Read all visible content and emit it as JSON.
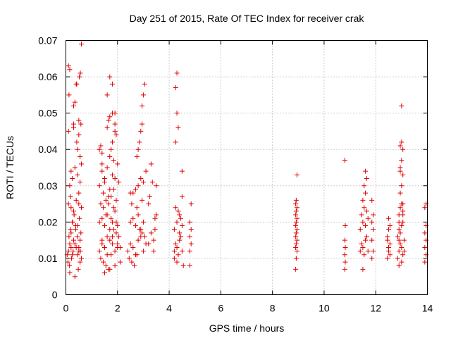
{
  "chart_data": {
    "type": "scatter",
    "title": "Day 251 of 2015, Rate Of TEC Index for receiver crak",
    "xlabel": "GPS time / hours",
    "ylabel": "ROTI / TECUs",
    "xlim": [
      0,
      14
    ],
    "ylim": [
      0,
      0.07
    ],
    "xticks": [
      "0",
      "2",
      "4",
      "6",
      "8",
      "10",
      "12",
      "14"
    ],
    "yticks": [
      "0",
      "0.01",
      "0.02",
      "0.03",
      "0.04",
      "0.05",
      "0.06",
      "0.07"
    ],
    "xtick_values": [
      0,
      2,
      4,
      6,
      8,
      10,
      12,
      14
    ],
    "ytick_values": [
      0,
      0.01,
      0.02,
      0.03,
      0.04,
      0.05,
      0.06,
      0.07
    ],
    "grid": true,
    "marker": "+",
    "color": "#e00000",
    "series": [
      {
        "x": [
          0.1,
          0.15,
          0.2,
          0.25,
          0.3,
          0.12,
          0.18,
          0.22,
          0.28,
          0.35,
          0.4,
          0.45,
          0.5,
          0.55,
          0.6,
          0.08,
          0.14,
          0.2,
          0.26,
          0.32,
          0.38,
          0.44,
          0.5,
          0.56,
          0.1,
          0.2,
          0.3,
          0.4,
          0.5,
          0.6,
          0.15,
          0.25,
          0.35,
          0.45,
          0.55,
          0.1,
          0.3,
          0.5,
          0.58,
          0.12,
          0.42,
          0.52,
          0.56,
          0.1,
          0.15,
          0.3,
          0.35,
          0.4,
          0.45,
          0.55,
          0.6,
          0.2,
          0.5,
          0.05,
          0.15,
          0.35,
          0.48,
          0.25,
          0.55,
          0.38,
          0.45,
          0.52,
          0.58,
          0.18,
          0.42,
          0.5,
          0.3,
          0.6
        ],
        "y": [
          0.012,
          0.014,
          0.013,
          0.011,
          0.015,
          0.016,
          0.018,
          0.01,
          0.012,
          0.014,
          0.013,
          0.011,
          0.012,
          0.015,
          0.01,
          0.009,
          0.008,
          0.017,
          0.02,
          0.022,
          0.019,
          0.016,
          0.013,
          0.012,
          0.025,
          0.024,
          0.023,
          0.026,
          0.025,
          0.024,
          0.03,
          0.032,
          0.035,
          0.033,
          0.031,
          0.045,
          0.046,
          0.048,
          0.047,
          0.055,
          0.058,
          0.06,
          0.061,
          0.063,
          0.062,
          0.052,
          0.053,
          0.058,
          0.04,
          0.038,
          0.036,
          0.034,
          0.028,
          0.011,
          0.006,
          0.005,
          0.007,
          0.02,
          0.009,
          0.018,
          0.019,
          0.021,
          0.017,
          0.027,
          0.042,
          0.044,
          0.047,
          0.069
        ]
      },
      {
        "x": [
          1.3,
          1.4,
          1.5,
          1.6,
          1.7,
          1.8,
          1.9,
          2.0,
          2.1,
          1.35,
          1.45,
          1.55,
          1.65,
          1.75,
          1.85,
          1.95,
          2.05,
          1.3,
          1.4,
          1.5,
          1.6,
          1.7,
          1.8,
          1.9,
          2.0,
          1.35,
          1.45,
          1.55,
          1.65,
          1.75,
          1.85,
          1.95,
          1.3,
          1.5,
          1.7,
          1.9,
          1.4,
          1.6,
          1.8,
          2.0,
          1.3,
          1.35,
          1.4,
          1.7,
          1.75,
          1.8,
          1.85,
          1.9,
          1.95,
          1.6,
          1.65,
          1.7,
          1.8,
          1.9,
          1.4,
          1.6,
          1.8,
          2.0,
          1.5,
          1.7,
          1.9,
          2.1,
          1.55,
          1.75,
          1.95,
          1.45,
          1.65,
          1.85,
          2.05,
          1.6,
          1.8,
          1.7,
          1.9,
          1.5,
          1.4
        ],
        "y": [
          0.012,
          0.014,
          0.013,
          0.011,
          0.015,
          0.016,
          0.012,
          0.014,
          0.013,
          0.01,
          0.009,
          0.008,
          0.007,
          0.011,
          0.018,
          0.017,
          0.016,
          0.02,
          0.021,
          0.019,
          0.022,
          0.018,
          0.02,
          0.023,
          0.019,
          0.025,
          0.024,
          0.026,
          0.025,
          0.027,
          0.024,
          0.026,
          0.03,
          0.031,
          0.029,
          0.032,
          0.034,
          0.035,
          0.033,
          0.036,
          0.04,
          0.041,
          0.039,
          0.038,
          0.04,
          0.042,
          0.037,
          0.045,
          0.044,
          0.046,
          0.048,
          0.049,
          0.05,
          0.047,
          0.015,
          0.016,
          0.014,
          0.013,
          0.006,
          0.007,
          0.008,
          0.009,
          0.022,
          0.021,
          0.02,
          0.028,
          0.027,
          0.029,
          0.031,
          0.055,
          0.058,
          0.06,
          0.05,
          0.032,
          0.036
        ]
      },
      {
        "x": [
          2.4,
          2.5,
          2.6,
          2.7,
          2.8,
          2.9,
          3.0,
          3.1,
          2.45,
          2.55,
          2.65,
          2.75,
          2.85,
          2.95,
          3.05,
          2.5,
          2.6,
          2.7,
          2.8,
          2.9,
          3.0,
          2.55,
          2.75,
          2.95,
          2.6,
          2.8,
          3.0,
          2.7,
          2.9,
          3.1,
          2.75,
          2.85,
          2.95,
          3.2,
          3.25,
          3.3,
          3.35,
          3.2,
          3.3,
          2.95,
          3.0,
          3.05,
          2.9,
          2.8,
          3.4,
          3.45,
          3.5,
          3.4,
          3.5,
          3.45,
          2.5
        ],
        "y": [
          0.012,
          0.014,
          0.013,
          0.011,
          0.015,
          0.016,
          0.012,
          0.014,
          0.01,
          0.009,
          0.008,
          0.011,
          0.018,
          0.017,
          0.016,
          0.02,
          0.021,
          0.019,
          0.022,
          0.018,
          0.02,
          0.025,
          0.024,
          0.026,
          0.028,
          0.03,
          0.031,
          0.029,
          0.032,
          0.034,
          0.038,
          0.042,
          0.047,
          0.025,
          0.027,
          0.036,
          0.031,
          0.014,
          0.017,
          0.052,
          0.055,
          0.058,
          0.045,
          0.04,
          0.015,
          0.018,
          0.03,
          0.012,
          0.022,
          0.021,
          0.028
        ]
      },
      {
        "x": [
          4.2,
          4.25,
          4.3,
          4.35,
          4.4,
          4.45,
          4.5,
          4.55,
          4.2,
          4.3,
          4.4,
          4.5,
          4.25,
          4.35,
          4.45,
          4.2,
          4.3,
          4.4,
          4.25,
          4.35,
          4.3,
          4.25,
          4.3,
          4.5,
          4.5,
          4.8,
          4.85,
          4.8,
          4.85,
          4.8,
          4.85,
          4.8
        ],
        "y": [
          0.012,
          0.014,
          0.013,
          0.011,
          0.015,
          0.016,
          0.012,
          0.008,
          0.018,
          0.02,
          0.022,
          0.019,
          0.024,
          0.023,
          0.021,
          0.01,
          0.009,
          0.017,
          0.042,
          0.046,
          0.05,
          0.057,
          0.061,
          0.034,
          0.027,
          0.012,
          0.014,
          0.016,
          0.018,
          0.02,
          0.025,
          0.008
        ]
      },
      {
        "x": [
          8.9,
          8.92,
          8.95,
          8.9,
          8.92,
          8.95,
          8.9,
          8.92,
          8.95,
          8.9,
          8.92,
          8.95,
          8.9,
          8.92,
          8.95,
          8.9,
          8.92,
          8.95
        ],
        "y": [
          0.007,
          0.01,
          0.012,
          0.013,
          0.014,
          0.015,
          0.016,
          0.017,
          0.018,
          0.019,
          0.02,
          0.021,
          0.022,
          0.023,
          0.024,
          0.025,
          0.026,
          0.033
        ]
      },
      {
        "x": [
          10.8,
          10.82,
          10.8,
          10.82,
          10.8,
          10.82,
          10.8
        ],
        "y": [
          0.007,
          0.009,
          0.011,
          0.013,
          0.015,
          0.019,
          0.037
        ]
      },
      {
        "x": [
          11.4,
          11.45,
          11.5,
          11.55,
          11.6,
          11.65,
          11.7,
          11.4,
          11.5,
          11.6,
          11.7,
          11.45,
          11.55,
          11.65,
          11.5,
          11.6,
          11.55,
          11.65,
          11.6,
          11.5,
          11.85,
          11.9,
          11.85,
          11.9,
          11.85,
          11.9,
          11.85
        ],
        "y": [
          0.012,
          0.014,
          0.013,
          0.011,
          0.015,
          0.016,
          0.012,
          0.018,
          0.02,
          0.019,
          0.021,
          0.022,
          0.024,
          0.023,
          0.026,
          0.028,
          0.03,
          0.032,
          0.034,
          0.007,
          0.01,
          0.012,
          0.015,
          0.018,
          0.02,
          0.022,
          0.026
        ]
      },
      {
        "x": [
          12.45,
          12.5,
          12.55,
          12.45,
          12.5,
          12.55,
          12.45,
          12.5,
          12.55,
          12.5,
          12.85,
          12.9,
          12.95,
          13.0,
          13.05,
          13.1,
          12.85,
          12.9,
          12.95,
          13.0,
          13.05,
          13.1,
          12.9,
          12.95,
          13.0,
          13.05,
          12.95,
          13.0,
          13.05,
          12.95,
          13.0,
          13.05,
          12.95,
          13.0,
          13.05,
          12.9,
          13.0,
          12.9,
          13.05,
          13.0,
          12.95,
          12.9
        ],
        "y": [
          0.01,
          0.012,
          0.014,
          0.016,
          0.018,
          0.019,
          0.015,
          0.013,
          0.011,
          0.021,
          0.01,
          0.012,
          0.014,
          0.013,
          0.011,
          0.015,
          0.016,
          0.018,
          0.017,
          0.019,
          0.02,
          0.012,
          0.022,
          0.024,
          0.025,
          0.023,
          0.028,
          0.03,
          0.033,
          0.035,
          0.037,
          0.04,
          0.041,
          0.042,
          0.025,
          0.008,
          0.009,
          0.02,
          0.022,
          0.052,
          0.034,
          0.015
        ]
      },
      {
        "x": [
          13.9,
          13.95,
          13.9,
          13.95,
          13.9,
          13.95,
          13.9,
          13.95
        ],
        "y": [
          0.009,
          0.011,
          0.013,
          0.015,
          0.017,
          0.019,
          0.024,
          0.025
        ]
      }
    ]
  }
}
